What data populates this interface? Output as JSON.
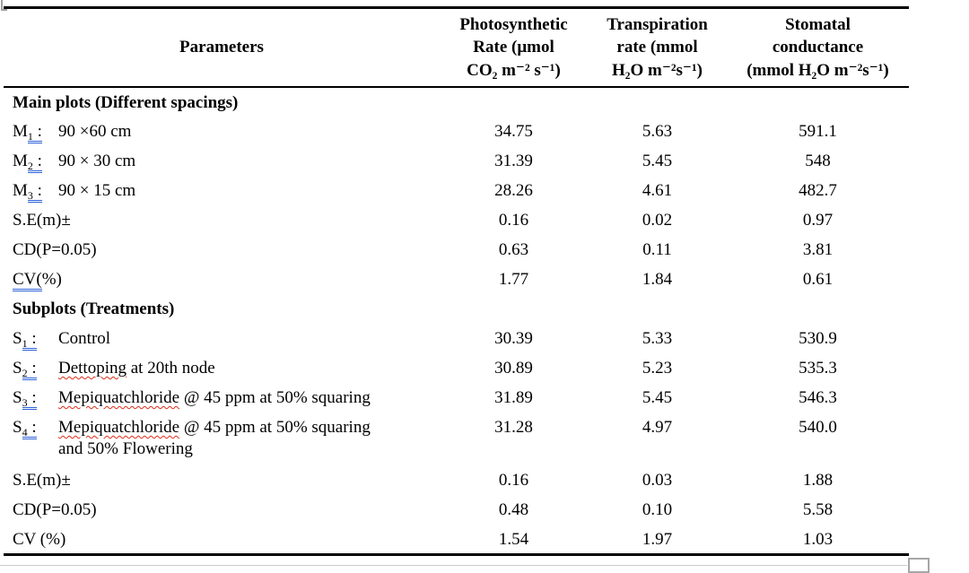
{
  "colors": {
    "text": "#000000",
    "table_border": "#000000",
    "grammar_underline_blue": "#2d61d8",
    "spell_underline_red": "#dd2c1a",
    "handle_gray": "#a6a6a6"
  },
  "icons": {
    "resize_handle": "table-resize-handle",
    "corner_fragment": "page-corner-artifact"
  },
  "table": {
    "columns": {
      "parameters_label": "Parameters",
      "photosynthetic": "Photosynthetic\nRate (μmol\nCO₂ m⁻² s⁻¹)",
      "transpiration": "Transpiration\nrate (mmol\nH₂O m⁻²s⁻¹)",
      "stomatal": "Stomatal\nconductance\n(mmol H₂O m⁻²s⁻¹)"
    },
    "rows": [
      {
        "kind": "section",
        "label": "Main plots (Different spacings)"
      },
      {
        "kind": "item",
        "head": "M",
        "sub": "1",
        "sep": ":",
        "desc": [
          {
            "t": "90 ×60 cm"
          }
        ],
        "vals": [
          "34.75",
          "5.63",
          "591.1"
        ]
      },
      {
        "kind": "item",
        "head": "M",
        "sub": "2",
        "sep": ":",
        "desc": [
          {
            "t": "90 × 30 cm"
          }
        ],
        "vals": [
          "31.39",
          "5.45",
          "548"
        ]
      },
      {
        "kind": "item",
        "head": "M",
        "sub": "3",
        "sep": ":",
        "desc": [
          {
            "t": "90 × 15 cm"
          }
        ],
        "vals": [
          "28.26",
          "4.61",
          "482.7"
        ]
      },
      {
        "kind": "plain",
        "label": [
          {
            "t": "S.E(m)±"
          }
        ],
        "vals": [
          "0.16",
          "0.02",
          "0.97"
        ]
      },
      {
        "kind": "plain",
        "label": [
          {
            "t": "CD(P=0.05)"
          }
        ],
        "vals": [
          "0.63",
          "0.11",
          "3.81"
        ]
      },
      {
        "kind": "plain",
        "label": [
          {
            "t": "CV(",
            "gram": true
          },
          {
            "t": "%)"
          }
        ],
        "vals": [
          "1.77",
          "1.84",
          "0.61"
        ]
      },
      {
        "kind": "section",
        "label": "Subplots (Treatments)"
      },
      {
        "kind": "item",
        "head": "S",
        "sub": "1",
        "sep": ":",
        "desc": [
          {
            "t": "Control"
          }
        ],
        "vals": [
          "30.39",
          "5.33",
          "530.9"
        ]
      },
      {
        "kind": "item",
        "head": "S",
        "sub": "2",
        "sep": ":",
        "desc": [
          {
            "t": "Dettoping",
            "spell": true
          },
          {
            "t": " at 20th node"
          }
        ],
        "vals": [
          "30.89",
          "5.23",
          "535.3"
        ]
      },
      {
        "kind": "item",
        "head": "S",
        "sub": "3",
        "sep": ":",
        "desc": [
          {
            "t": "Mepiquatchloride",
            "spell": true
          },
          {
            "t": " @ 45 ppm at 50% squaring"
          }
        ],
        "vals": [
          "31.89",
          "5.45",
          "546.3"
        ]
      },
      {
        "kind": "item",
        "head": "S",
        "sub": "4",
        "sep": ":",
        "tall": true,
        "desc": [
          {
            "t": "Mepiquatchloride",
            "spell": true
          },
          {
            "t": " @ 45 ppm at 50% squaring\nand 50% Flowering"
          }
        ],
        "vals": [
          "31.28",
          "4.97",
          "540.0"
        ]
      },
      {
        "kind": "plain",
        "label": [
          {
            "t": "S.E(m)±"
          }
        ],
        "vals": [
          "0.16",
          "0.03",
          "1.88"
        ]
      },
      {
        "kind": "plain",
        "label": [
          {
            "t": "CD(P=0.05)"
          }
        ],
        "vals": [
          "0.48",
          "0.10",
          "5.58"
        ]
      },
      {
        "kind": "plain",
        "label": [
          {
            "t": "CV (%)"
          }
        ],
        "vals": [
          "1.54",
          "1.97",
          "1.03"
        ]
      }
    ]
  }
}
